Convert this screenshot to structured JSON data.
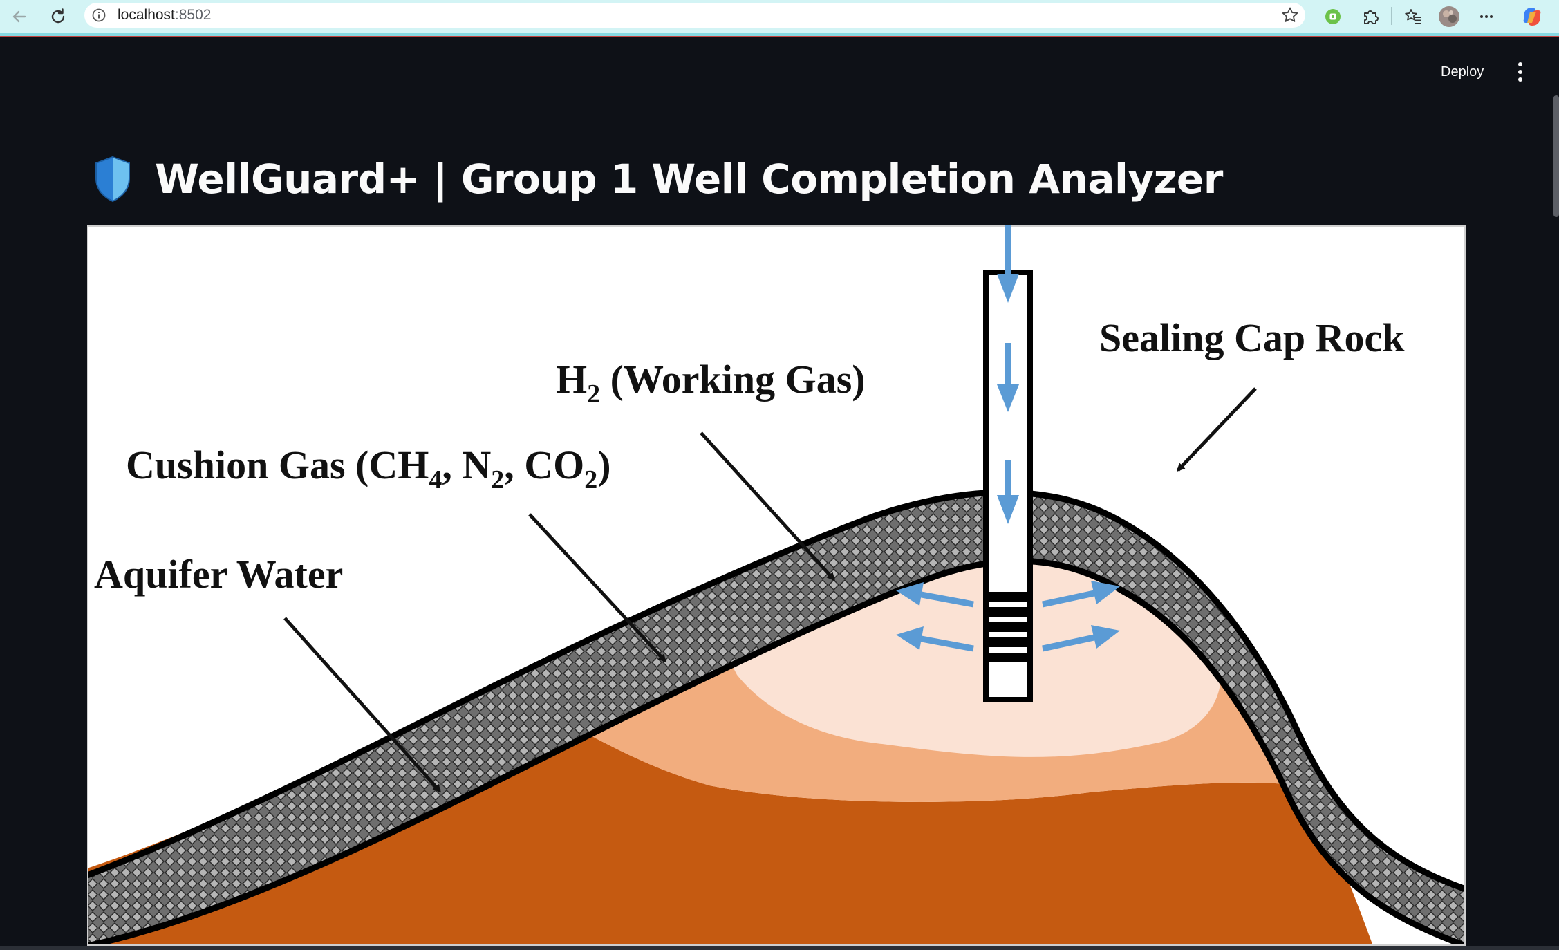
{
  "browser": {
    "url_host": "localhost",
    "url_port": ":8502",
    "icons": [
      "back-arrow-icon",
      "reload-icon",
      "info-icon",
      "star-icon",
      "extension-green-icon",
      "puzzle-icon",
      "favorites-icon",
      "profile-avatar",
      "more-icon",
      "copilot-icon"
    ]
  },
  "header": {
    "deploy_label": "Deploy",
    "menu_icon": "vertical-dots-icon"
  },
  "page": {
    "title": "WellGuard+ | Group 1 Well Completion Analyzer",
    "title_icon": "shield-icon"
  },
  "figure": {
    "labels": {
      "cap_rock": "Sealing Cap Rock",
      "h2_a": "H",
      "h2_sub": "2",
      "h2_b": " (Working Gas)",
      "cushion_a": "Cushion Gas (CH",
      "cushion_sub1": "4",
      "cushion_b": ", N",
      "cushion_sub2": "2",
      "cushion_c": ", CO",
      "cushion_sub3": "2",
      "cushion_d": ")",
      "aquifer": "Aquifer Water"
    },
    "colors": {
      "aquifer": "#c55a11",
      "cushion": "#f2ad7e",
      "working_gas": "#fbe2d4",
      "flow_arrows": "#5b9bd5",
      "cap_rock": "#808080"
    }
  }
}
